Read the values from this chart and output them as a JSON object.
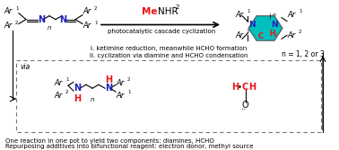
{
  "bg_color": "#ffffff",
  "arrow_color": "#000000",
  "red_color": "#ee1111",
  "blue_color": "#2222bb",
  "cyan_color": "#00bfbf",
  "bottom_text1": "One reaction in one pot to yield two components: diamines, HCHO",
  "bottom_text2": "Repurposing additives into bifunctional reagent: electron donor, methyl source",
  "condition_text": "photocatalytic cascade cyclization",
  "mechanism_line1": "i. ketimine reduction, meanwhile HCHO formation",
  "mechanism_line2": "ii. cyclization via diamine and HCHO condensation",
  "via_text": "via",
  "n_label": "n = 1, 2 or 3"
}
